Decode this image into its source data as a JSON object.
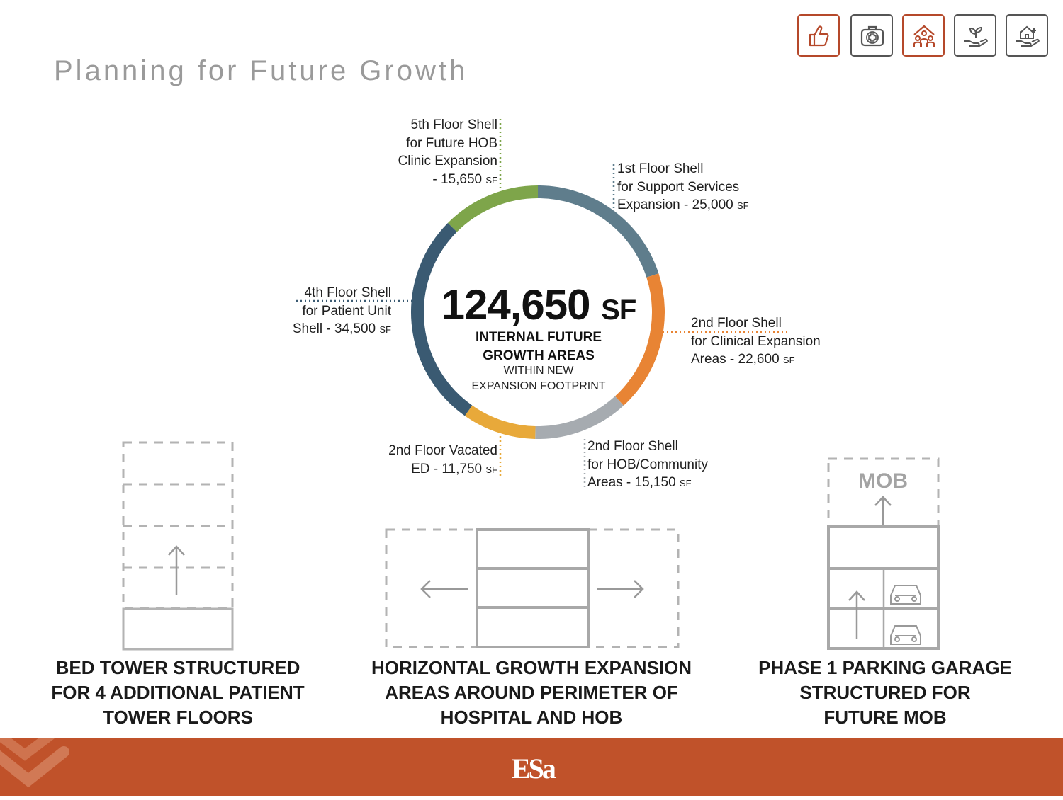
{
  "title": "Planning for Future Growth",
  "icons": [
    {
      "name": "thumbs-up-icon",
      "active": true
    },
    {
      "name": "medical-kit-icon",
      "active": false
    },
    {
      "name": "community-people-icon",
      "active": true
    },
    {
      "name": "plant-in-hand-icon",
      "active": false
    },
    {
      "name": "home-in-hand-icon",
      "active": false
    }
  ],
  "colors": {
    "accent": "#c0522a",
    "navy": "#3a5a72",
    "slate": "#5f7d8c",
    "orange": "#e88434",
    "gray": "#a6abb0",
    "yellow": "#e8a93a",
    "green": "#7ea54a"
  },
  "center": {
    "total_value": "124,650",
    "total_unit": "SF",
    "line1": "INTERNAL FUTURE",
    "line2": "GROWTH AREAS",
    "line3": "WITHIN NEW",
    "line4": "EXPANSION FOOTPRINT"
  },
  "chart_data": {
    "type": "pie",
    "total": 124650,
    "unit": "SF",
    "slices": [
      {
        "label": "1st Floor Shell for Support Services Expansion",
        "value": 25000,
        "color": "#5f7d8c"
      },
      {
        "label": "2nd Floor Shell for Clinical Expansion Areas",
        "value": 22600,
        "color": "#e88434"
      },
      {
        "label": "2nd Floor Shell for HOB/Community Areas",
        "value": 15150,
        "color": "#a6abb0"
      },
      {
        "label": "2nd Floor Vacated ED",
        "value": 11750,
        "color": "#e8a93a"
      },
      {
        "label": "4th Floor Shell for Patient Unit Shell",
        "value": 34500,
        "color": "#3a5a72"
      },
      {
        "label": "5th Floor Shell for Future HOB Clinic Expansion",
        "value": 15650,
        "color": "#7ea54a"
      }
    ]
  },
  "labels": {
    "fifth": [
      "5th Floor Shell",
      "for Future HOB",
      "Clinic Expansion",
      "- 15,650"
    ],
    "first": [
      "1st Floor Shell",
      "for Support Services",
      "Expansion - 25,000"
    ],
    "fourth": [
      "4th Floor Shell",
      "for Patient Unit",
      "Shell - 34,500"
    ],
    "second_clinical": [
      "2nd Floor Shell",
      "for Clinical Expansion",
      "Areas - 22,600"
    ],
    "second_vacated": [
      "2nd Floor Vacated",
      "ED - 11,750"
    ],
    "second_hob": [
      "2nd Floor Shell",
      "for HOB/Community",
      "Areas - 15,150"
    ],
    "unit_small": "SF"
  },
  "diagrams": {
    "mob_label": "MOB"
  },
  "captions": {
    "bed_tower": [
      "BED TOWER STRUCTURED",
      "FOR 4 ADDITIONAL PATIENT",
      "TOWER FLOORS"
    ],
    "horizontal": [
      "HORIZONTAL GROWTH EXPANSION",
      "AREAS AROUND PERIMETER OF",
      "HOSPITAL AND HOB"
    ],
    "parking": [
      "PHASE 1 PARKING GARAGE",
      "STRUCTURED FOR",
      "FUTURE MOB"
    ]
  },
  "footer": {
    "logo": "ESa"
  }
}
